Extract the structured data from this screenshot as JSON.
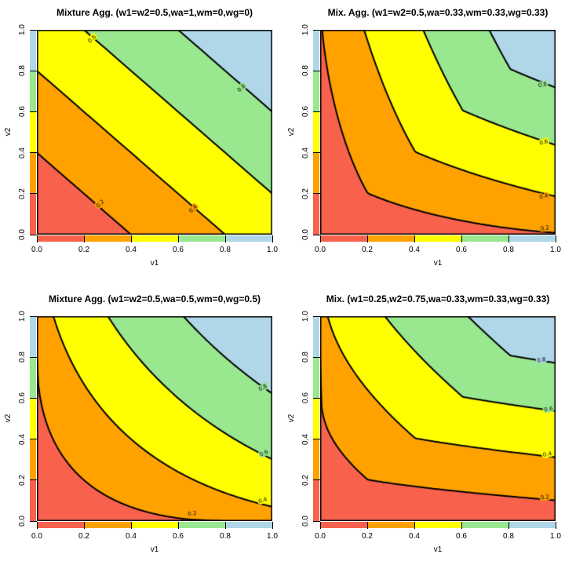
{
  "figure": {
    "background": "#FFFFFF",
    "rows": 2,
    "cols": 2
  },
  "palette": {
    "bands": [
      "#F8624D",
      "#FFA200",
      "#FFFF00",
      "#99E88F",
      "#AFD7E8"
    ],
    "contour_line": "#000000",
    "text": "#000000"
  },
  "axes": {
    "xlabel": "v1",
    "ylabel": "v2",
    "tick_labels": [
      "0.0",
      "0.2",
      "0.4",
      "0.6",
      "0.8",
      "1.0"
    ],
    "tick_values": [
      0,
      0.2,
      0.4,
      0.6,
      0.8,
      1.0
    ]
  },
  "chart_data": [
    {
      "type": "filled_contour",
      "title": "Mixture Agg. (w1=w2=0.5,wa=1,wm=0,wg=0)",
      "params": {
        "w1": 0.5,
        "w2": 0.5,
        "wa": 1,
        "wm": 0,
        "wg": 0
      },
      "xlabel": "v1",
      "ylabel": "v2",
      "xlim": [
        0,
        1
      ],
      "ylim": [
        0,
        1
      ],
      "levels": [
        0.2,
        0.4,
        0.6,
        0.8
      ],
      "contour_labels": [
        {
          "text": "0.2",
          "v1": 0.27,
          "v2": 0.15,
          "angle": -45
        },
        {
          "text": "0.4",
          "v1": 0.665,
          "v2": 0.125,
          "angle": -45
        },
        {
          "text": "0.6",
          "v1": 0.235,
          "v2": 0.955,
          "angle": -45
        },
        {
          "text": "0.8",
          "v1": 0.87,
          "v2": 0.715,
          "angle": -45
        }
      ]
    },
    {
      "type": "filled_contour",
      "title": "Mix. Agg. (w1=w2=0.5,wa=0.33,wm=0.33,wg=0.33)",
      "params": {
        "w1": 0.5,
        "w2": 0.5,
        "wa": 0.33,
        "wm": 0.33,
        "wg": 0.33
      },
      "xlabel": "v1",
      "ylabel": "v2",
      "xlim": [
        0,
        1
      ],
      "ylim": [
        0,
        1
      ],
      "levels": [
        0.2,
        0.4,
        0.6,
        0.8
      ],
      "contour_labels": [
        {
          "text": "0.2",
          "v1": 0.955,
          "v2": 0.03,
          "angle": -8
        },
        {
          "text": "0.4",
          "v1": 0.95,
          "v2": 0.185,
          "angle": -14
        },
        {
          "text": "0.6",
          "v1": 0.95,
          "v2": 0.45,
          "angle": -16
        },
        {
          "text": "0.8",
          "v1": 0.945,
          "v2": 0.73,
          "angle": -14
        }
      ]
    },
    {
      "type": "filled_contour",
      "title": "Mixture Agg. (w1=w2=0.5,wa=0.5,wm=0,wg=0.5)",
      "params": {
        "w1": 0.5,
        "w2": 0.5,
        "wa": 0.5,
        "wm": 0,
        "wg": 0.5
      },
      "xlabel": "v1",
      "ylabel": "v2",
      "xlim": [
        0,
        1
      ],
      "ylim": [
        0,
        1
      ],
      "levels": [
        0.2,
        0.4,
        0.6,
        0.8
      ],
      "contour_labels": [
        {
          "text": "0.2",
          "v1": 0.66,
          "v2": 0.035,
          "angle": -10
        },
        {
          "text": "0.4",
          "v1": 0.96,
          "v2": 0.1,
          "angle": -18
        },
        {
          "text": "0.6",
          "v1": 0.965,
          "v2": 0.33,
          "angle": -25
        },
        {
          "text": "0.8",
          "v1": 0.96,
          "v2": 0.65,
          "angle": -28
        }
      ]
    },
    {
      "type": "filled_contour",
      "title": "Mix. (w1=0.25,w2=0.75,wa=0.33,wm=0.33,wg=0.33)",
      "params": {
        "w1": 0.25,
        "w2": 0.75,
        "wa": 0.33,
        "wm": 0.33,
        "wg": 0.33
      },
      "xlabel": "v1",
      "ylabel": "v2",
      "xlim": [
        0,
        1
      ],
      "ylim": [
        0,
        1
      ],
      "levels": [
        0.2,
        0.4,
        0.6,
        0.8
      ],
      "contour_labels": [
        {
          "text": "0.2",
          "v1": 0.955,
          "v2": 0.115,
          "angle": -8
        },
        {
          "text": "0.4",
          "v1": 0.965,
          "v2": 0.325,
          "angle": -10
        },
        {
          "text": "0.6",
          "v1": 0.97,
          "v2": 0.545,
          "angle": -10
        },
        {
          "text": "0.8",
          "v1": 0.94,
          "v2": 0.785,
          "angle": -12
        }
      ]
    }
  ]
}
